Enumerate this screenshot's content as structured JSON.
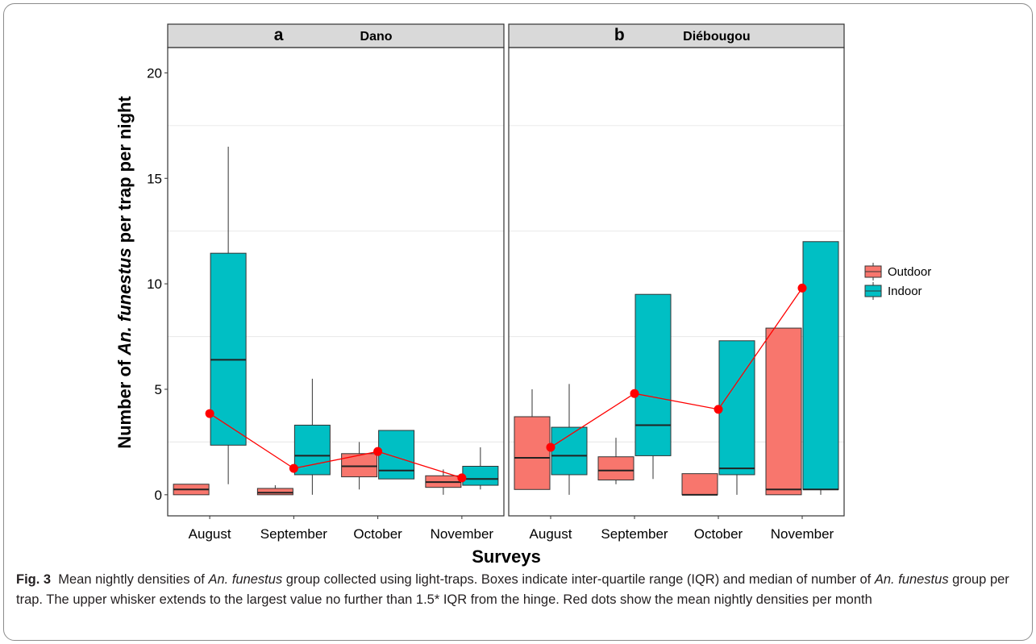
{
  "chart_data": {
    "type": "box",
    "xlabel": "Surveys",
    "ylabel": {
      "prefix": "Number of ",
      "italic": "An. funestus",
      "suffix": " per trap per night"
    },
    "ylim": [
      -1,
      21.2
    ],
    "yticks": [
      0,
      5,
      10,
      15,
      20
    ],
    "grid": true,
    "legend_position": "right",
    "categories": [
      "August",
      "September",
      "October",
      "November"
    ],
    "series_names": [
      "Outdoor",
      "Indoor"
    ],
    "colors": {
      "Outdoor": "#F8766D",
      "Indoor": "#00BFC4",
      "mean": "#FF0000",
      "strip": "#D9D9D9"
    },
    "panels": [
      {
        "letter": "a",
        "site": "Dano",
        "boxes": [
          {
            "category": "August",
            "series": "Outdoor",
            "whisker_low": 0,
            "q1": 0,
            "median": 0.25,
            "q3": 0.5,
            "whisker_high": 0.5
          },
          {
            "category": "August",
            "series": "Indoor",
            "whisker_low": 0.5,
            "q1": 2.35,
            "median": 6.4,
            "q3": 11.45,
            "whisker_high": 16.5
          },
          {
            "category": "September",
            "series": "Outdoor",
            "whisker_low": 0,
            "q1": 0,
            "median": 0.1,
            "q3": 0.3,
            "whisker_high": 0.45
          },
          {
            "category": "September",
            "series": "Indoor",
            "whisker_low": 0,
            "q1": 0.95,
            "median": 1.85,
            "q3": 3.3,
            "whisker_high": 5.5
          },
          {
            "category": "October",
            "series": "Outdoor",
            "whisker_low": 0.25,
            "q1": 0.85,
            "median": 1.35,
            "q3": 1.95,
            "whisker_high": 2.5
          },
          {
            "category": "October",
            "series": "Indoor",
            "whisker_low": 0.75,
            "q1": 0.75,
            "median": 1.15,
            "q3": 3.05,
            "whisker_high": 3.05
          },
          {
            "category": "November",
            "series": "Outdoor",
            "whisker_low": 0,
            "q1": 0.35,
            "median": 0.6,
            "q3": 0.9,
            "whisker_high": 1.2
          },
          {
            "category": "November",
            "series": "Indoor",
            "whisker_low": 0.25,
            "q1": 0.45,
            "median": 0.75,
            "q3": 1.35,
            "whisker_high": 2.25
          }
        ],
        "means": [
          3.85,
          1.25,
          2.05,
          0.8
        ]
      },
      {
        "letter": "b",
        "site": "Diébougou",
        "boxes": [
          {
            "category": "August",
            "series": "Outdoor",
            "whisker_low": 0.25,
            "q1": 0.25,
            "median": 1.75,
            "q3": 3.7,
            "whisker_high": 5.0
          },
          {
            "category": "August",
            "series": "Indoor",
            "whisker_low": 0,
            "q1": 0.95,
            "median": 1.85,
            "q3": 3.2,
            "whisker_high": 5.25
          },
          {
            "category": "September",
            "series": "Outdoor",
            "whisker_low": 0.5,
            "q1": 0.7,
            "median": 1.15,
            "q3": 1.8,
            "whisker_high": 2.7
          },
          {
            "category": "September",
            "series": "Indoor",
            "whisker_low": 0.75,
            "q1": 1.85,
            "median": 3.3,
            "q3": 9.5,
            "whisker_high": 9.5
          },
          {
            "category": "October",
            "series": "Outdoor",
            "whisker_low": 0,
            "q1": 0,
            "median": 0,
            "q3": 1.0,
            "whisker_high": 1.0
          },
          {
            "category": "October",
            "series": "Indoor",
            "whisker_low": 0,
            "q1": 0.95,
            "median": 1.25,
            "q3": 7.3,
            "whisker_high": 7.3
          },
          {
            "category": "November",
            "series": "Outdoor",
            "whisker_low": 0,
            "q1": 0,
            "median": 0.25,
            "q3": 7.9,
            "whisker_high": 7.9
          },
          {
            "category": "November",
            "series": "Indoor",
            "whisker_low": 0,
            "q1": 0.25,
            "median": 0.25,
            "q3": 12.0,
            "whisker_high": 12.0
          }
        ],
        "means": [
          2.25,
          4.8,
          4.05,
          9.8
        ]
      }
    ]
  },
  "caption": {
    "label": "Fig. 3",
    "parts": [
      {
        "text": "Mean nightly densities of ",
        "italic": false
      },
      {
        "text": "An. funestus",
        "italic": true
      },
      {
        "text": " group collected using light-traps. Boxes indicate inter-quartile range (IQR) and median of number of ",
        "italic": false
      },
      {
        "text": "An. funestus",
        "italic": true
      },
      {
        "text": " group per trap. The upper whisker extends to the largest value no further than 1.5* IQR from the hinge. Red dots show the mean nightly densities per month",
        "italic": false
      }
    ]
  }
}
